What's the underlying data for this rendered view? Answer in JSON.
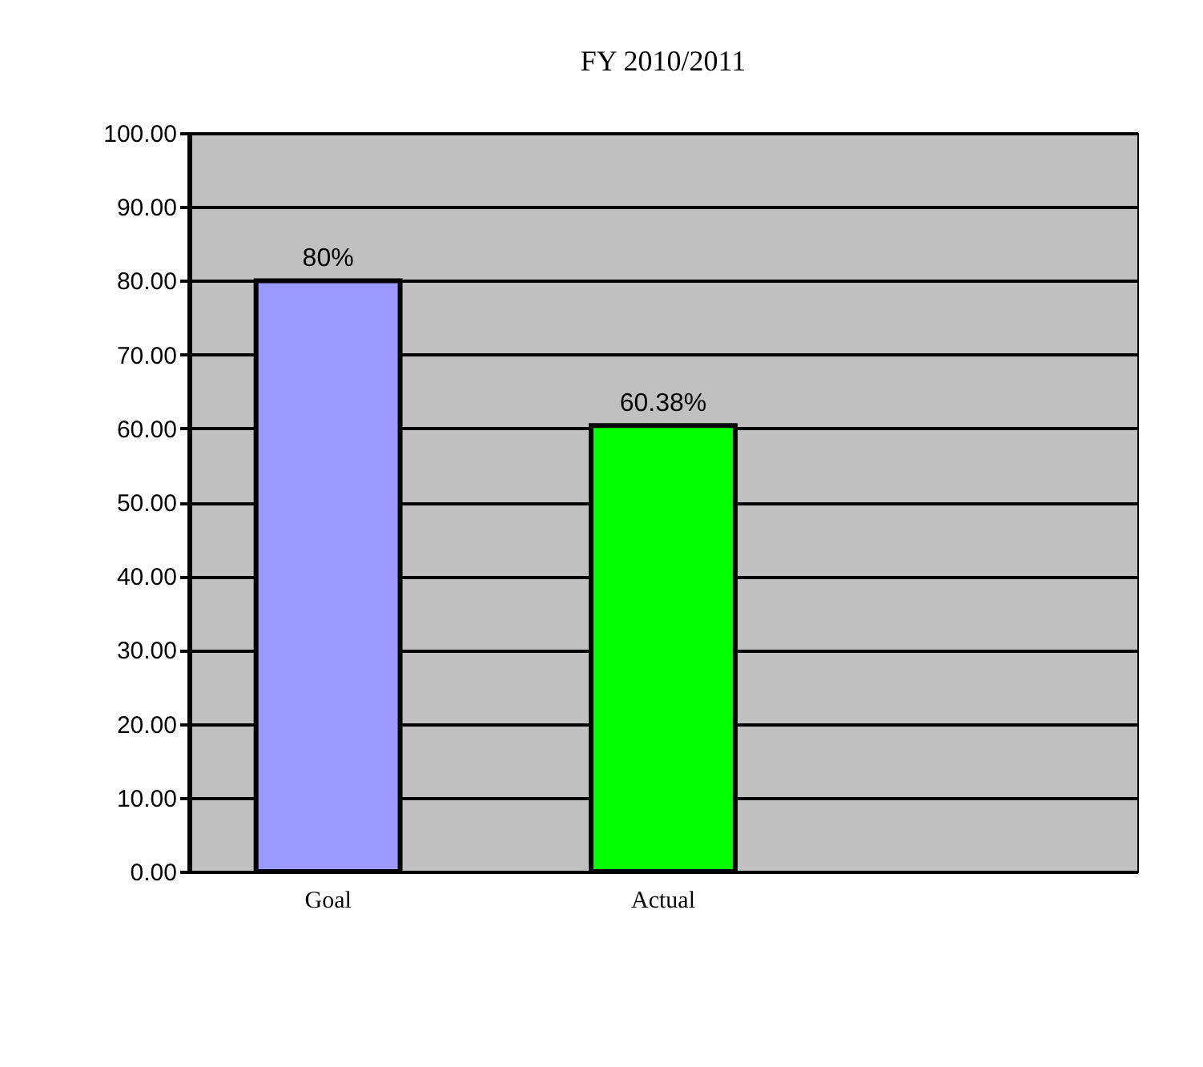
{
  "chart_data": {
    "type": "bar",
    "title": "FY 2010/2011",
    "categories": [
      "Goal",
      "Actual",
      null
    ],
    "values": [
      80,
      60.38,
      null
    ],
    "colors": [
      "#9999ff",
      "#00ff00",
      "#9999ff"
    ],
    "value_labels": [
      "80%",
      "60.38%",
      null
    ],
    "ylim": [
      0,
      100
    ],
    "yticks": [
      {
        "value": 0,
        "label": "0.00"
      },
      {
        "value": 10,
        "label": "10.00"
      },
      {
        "value": 20,
        "label": "20.00"
      },
      {
        "value": 30,
        "label": "30.00"
      },
      {
        "value": 40,
        "label": "40.00"
      },
      {
        "value": 50,
        "label": "50.00"
      },
      {
        "value": 60,
        "label": "60.00"
      },
      {
        "value": 70,
        "label": "70.00"
      },
      {
        "value": 80,
        "label": "80.00"
      },
      {
        "value": 90,
        "label": "90.00"
      },
      {
        "value": 100,
        "label": "100.00"
      }
    ],
    "grid": "y"
  }
}
